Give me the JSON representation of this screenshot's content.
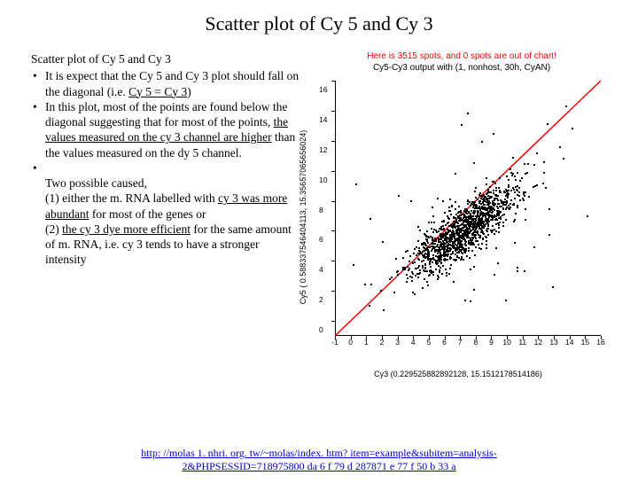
{
  "title": "Scatter plot of Cy 5 and Cy 3",
  "left": {
    "subtitle": "Scatter plot of Cy 5 and Cy 3",
    "bullet1_a": "It is expect that the Cy 5 and Cy 3 plot should fall on the diagonal (i.e. ",
    "bullet1_u": "Cy 5 = Cy 3",
    "bullet1_b": ")",
    "bullet2_a": "In this plot, most of the points are found below the diagonal suggesting that for most of the points, ",
    "bullet2_u": "the values measured on the cy 3 channel are higher",
    "bullet2_b": " than the values measured on the dy 5 channel.",
    "bullet3_a": "Two possible caused,\n(1) either the m. RNA labelled with ",
    "bullet3_u1": "cy 3 was more abundant",
    "bullet3_b": " for most of the genes or\n(2) ",
    "bullet3_u2": "the cy 3 dye more efficient",
    "bullet3_c": " for the same amount of m. RNA, i.e. cy 3 tends to have a stronger intensity"
  },
  "chart": {
    "header_red": "Here is 3515 spots, and 0 spots are out of chart!",
    "header_black": "Cy5-Cy3 output with (1, nonhost, 30h, CyAN)",
    "ylabel": "Cy5 ( 0.588337546404113, 15.35657065656024)",
    "xlabel": "Cy3 (0.229525882892128, 15.1512178514186)",
    "xlim": [
      -1,
      16
    ],
    "ylim": [
      -1,
      16
    ],
    "xticks": [
      -1,
      0,
      1,
      2,
      3,
      4,
      5,
      6,
      7,
      8,
      9,
      10,
      11,
      12,
      13,
      14,
      15,
      16
    ],
    "yticks": [
      0,
      2,
      4,
      6,
      8,
      10,
      12,
      14,
      16
    ],
    "diag_color": "#ff0000",
    "point_color": "#000000"
  },
  "link": {
    "href": "http://molas1.nhri.org.tw/~molas/index.htm?item=example&subitem=analysis-2&PHPSESSID=718975800da6f79d287871e77f50b33a",
    "text1": "http: //molas 1. nhri. org. tw/~molas/index. htm? item=example&subitem=analysis-",
    "text2": "2&PHPSESSID=718975800 da 6 f 79 d 287871 e 77 f 50 b 33 a"
  }
}
